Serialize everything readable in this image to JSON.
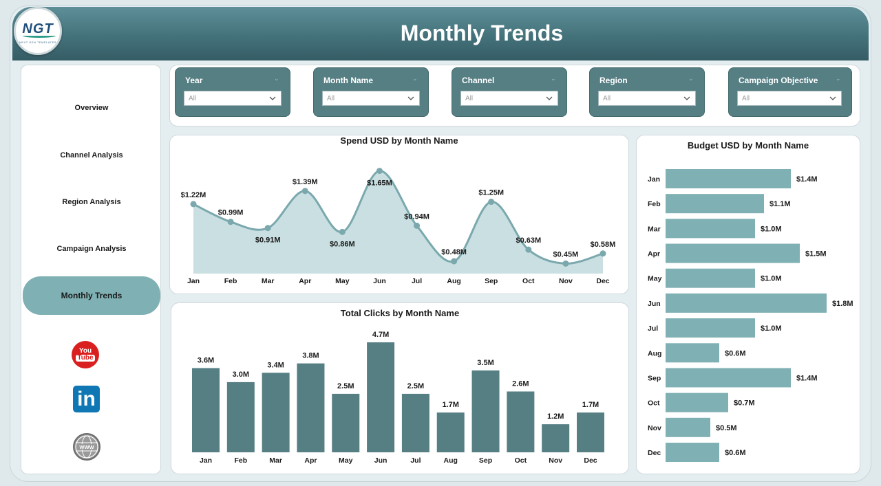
{
  "header": {
    "title": "Monthly Trends"
  },
  "logo": {
    "text": "NGT",
    "subtext": "NEXT GEN TEMPLATES"
  },
  "sidebar": {
    "items": [
      {
        "label": "Overview"
      },
      {
        "label": "Channel Analysis"
      },
      {
        "label": "Region Analysis"
      },
      {
        "label": "Campaign Analysis"
      },
      {
        "label": "Monthly Trends",
        "active": true
      }
    ],
    "social": [
      {
        "icon": "youtube-icon",
        "text1": "You",
        "text2": "Tube"
      },
      {
        "icon": "linkedin-icon",
        "text": "in"
      },
      {
        "icon": "website-globe-icon",
        "text": "WWW"
      }
    ]
  },
  "filters": [
    {
      "label": "Year",
      "value": "All"
    },
    {
      "label": "Month Name",
      "value": "All"
    },
    {
      "label": "Channel",
      "value": "All"
    },
    {
      "label": "Region",
      "value": "All"
    },
    {
      "label": "Campaign Objective",
      "value": "All"
    }
  ],
  "colors": {
    "accent": "#567f84",
    "line": "#7aa8ad",
    "area": "#c9dfe1",
    "bar_dark": "#567f84",
    "bar_light": "#7fb0b3"
  },
  "chart_data": [
    {
      "type": "area",
      "title": "Spend USD by Month Name",
      "categories": [
        "Jan",
        "Feb",
        "Mar",
        "Apr",
        "May",
        "Jun",
        "Jul",
        "Aug",
        "Sep",
        "Oct",
        "Nov",
        "Dec"
      ],
      "values": [
        1.22,
        0.99,
        0.91,
        1.39,
        0.86,
        1.65,
        0.94,
        0.48,
        1.25,
        0.63,
        0.45,
        0.58
      ],
      "labels": [
        "$1.22M",
        "$0.99M",
        "$0.91M",
        "$1.39M",
        "$0.86M",
        "$1.65M",
        "$0.94M",
        "$0.48M",
        "$1.25M",
        "$0.63M",
        "$0.45M",
        "$0.58M"
      ],
      "label_position": [
        "above",
        "above",
        "below",
        "above",
        "below",
        "below",
        "above",
        "above",
        "above",
        "above",
        "above",
        "above"
      ],
      "unit": "M USD",
      "ylim": [
        0.4,
        1.7
      ]
    },
    {
      "type": "bar",
      "title": "Total Clicks by Month Name",
      "categories": [
        "Jan",
        "Feb",
        "Mar",
        "Apr",
        "May",
        "Jun",
        "Jul",
        "Aug",
        "Sep",
        "Oct",
        "Nov",
        "Dec"
      ],
      "values": [
        3.6,
        3.0,
        3.4,
        3.8,
        2.5,
        4.7,
        2.5,
        1.7,
        3.5,
        2.6,
        1.2,
        1.7
      ],
      "labels": [
        "3.6M",
        "3.0M",
        "3.4M",
        "3.8M",
        "2.5M",
        "4.7M",
        "2.5M",
        "1.7M",
        "3.5M",
        "2.6M",
        "1.2M",
        "1.7M"
      ],
      "unit": "M",
      "ylim": [
        0,
        4.7
      ]
    },
    {
      "type": "bar",
      "orientation": "horizontal",
      "title": "Budget USD by Month Name",
      "categories": [
        "Jan",
        "Feb",
        "Mar",
        "Apr",
        "May",
        "Jun",
        "Jul",
        "Aug",
        "Sep",
        "Oct",
        "Nov",
        "Dec"
      ],
      "values": [
        1.4,
        1.1,
        1.0,
        1.5,
        1.0,
        1.8,
        1.0,
        0.6,
        1.4,
        0.7,
        0.5,
        0.6
      ],
      "labels": [
        "$1.4M",
        "$1.1M",
        "$1.0M",
        "$1.5M",
        "$1.0M",
        "$1.8M",
        "$1.0M",
        "$0.6M",
        "$1.4M",
        "$0.7M",
        "$0.5M",
        "$0.6M"
      ],
      "unit": "M USD",
      "xlim": [
        0,
        1.8
      ]
    }
  ]
}
